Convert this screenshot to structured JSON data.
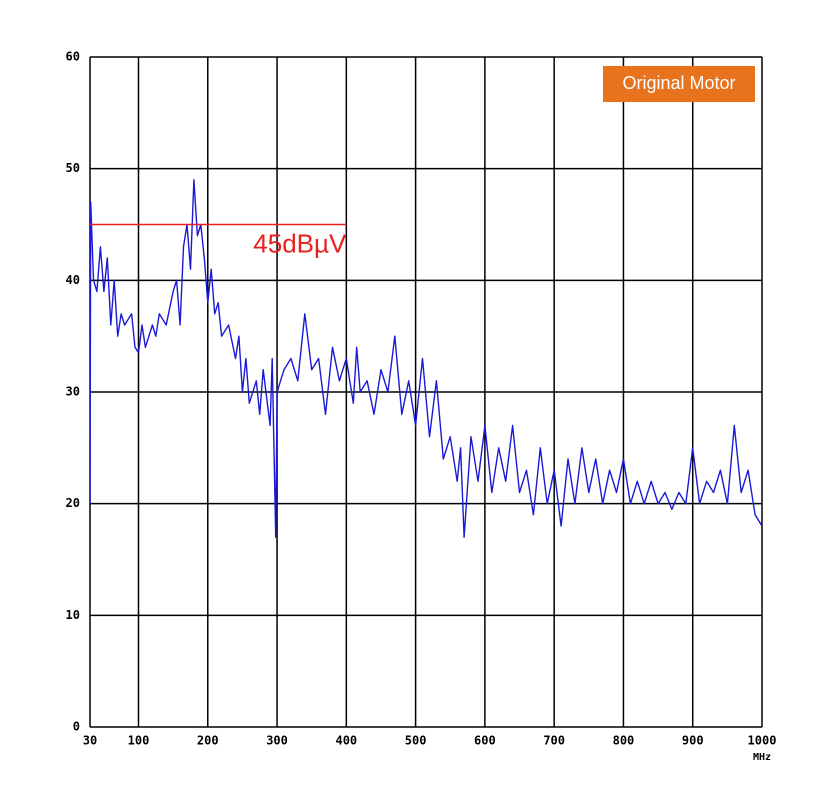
{
  "chart_data": {
    "type": "line",
    "xlabel": "MHz",
    "badge": "Original Motor",
    "xlim": [
      30,
      1000
    ],
    "ylim": [
      0,
      60
    ],
    "xticks": [
      30,
      100,
      200,
      300,
      400,
      500,
      600,
      700,
      800,
      900,
      1000
    ],
    "yticks": [
      0,
      10,
      20,
      30,
      40,
      50,
      60
    ],
    "grid": true,
    "annotations": [
      {
        "text": "45dBµV",
        "value": 45,
        "x": [
          30,
          400
        ],
        "color": "#e8201e"
      }
    ],
    "series": [
      {
        "name": null,
        "color": "#1a1ad6",
        "x": [
          30,
          31,
          35,
          40,
          45,
          50,
          55,
          60,
          65,
          70,
          75,
          80,
          90,
          95,
          100,
          105,
          110,
          120,
          125,
          130,
          140,
          150,
          155,
          160,
          165,
          170,
          175,
          180,
          185,
          190,
          195,
          200,
          205,
          210,
          215,
          220,
          230,
          240,
          245,
          250,
          255,
          260,
          270,
          275,
          280,
          290,
          293,
          298,
          300,
          310,
          320,
          330,
          340,
          350,
          360,
          370,
          380,
          390,
          400,
          410,
          415,
          420,
          430,
          440,
          450,
          460,
          470,
          480,
          490,
          500,
          510,
          520,
          530,
          540,
          550,
          560,
          565,
          570,
          580,
          590,
          600,
          610,
          620,
          630,
          640,
          650,
          660,
          670,
          680,
          690,
          700,
          710,
          720,
          730,
          740,
          750,
          760,
          770,
          780,
          790,
          800,
          810,
          820,
          830,
          840,
          850,
          860,
          870,
          880,
          890,
          900,
          910,
          920,
          930,
          940,
          950,
          960,
          970,
          980,
          990,
          1000
        ],
        "values": [
          20,
          47,
          40,
          39,
          43,
          39,
          42,
          36,
          40,
          35,
          37,
          36,
          37,
          34,
          33.5,
          36,
          34,
          36,
          35,
          37,
          36,
          39,
          40,
          36,
          43,
          45,
          41,
          49,
          44,
          45,
          42,
          38,
          41,
          37,
          38,
          35,
          36,
          33,
          35,
          30,
          33,
          29,
          31,
          28,
          32,
          27,
          33,
          17,
          30,
          32,
          33,
          31,
          37,
          32,
          33,
          28,
          34,
          31,
          33,
          29,
          34,
          30,
          31,
          28,
          32,
          30,
          35,
          28,
          31,
          27,
          33,
          26,
          31,
          24,
          26,
          22,
          25,
          17,
          26,
          22,
          27,
          21,
          25,
          22,
          27,
          21,
          23,
          19,
          25,
          20,
          23,
          18,
          24,
          20,
          25,
          21,
          24,
          20,
          23,
          21,
          24,
          20,
          22,
          20,
          22,
          20,
          21,
          19.5,
          21,
          20,
          25,
          20,
          22,
          21,
          23,
          20,
          27,
          21,
          23,
          19,
          18
        ]
      }
    ]
  }
}
